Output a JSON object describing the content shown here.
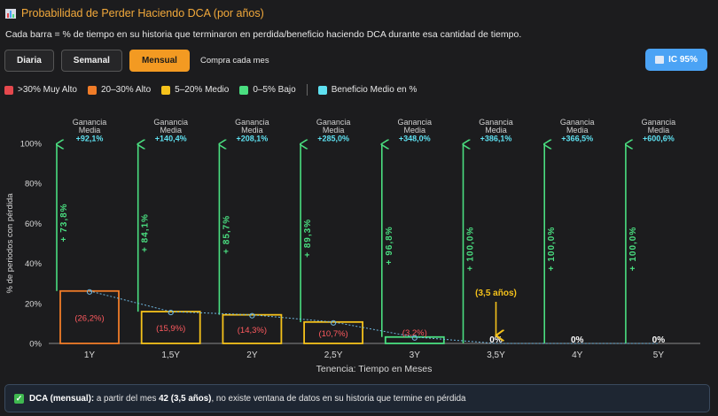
{
  "header": {
    "title": "Probabilidad de Perder Haciendo DCA (por años)",
    "description": "Cada barra = % de tiempo en su historia que terminaron en perdida/beneficio haciendo DCA durante esa cantidad de tiempo."
  },
  "controls": {
    "buttons": [
      {
        "label": "Diaria",
        "active": false
      },
      {
        "label": "Semanal",
        "active": false
      },
      {
        "label": "Mensual",
        "active": true
      }
    ],
    "frequency_label": "Compra cada mes",
    "ic_button": "IC 95%"
  },
  "legend": {
    "items": [
      {
        "label": ">30% Muy Alto",
        "color": "#e5484d"
      },
      {
        "label": "20–30% Alto",
        "color": "#f07c28"
      },
      {
        "label": "5–20% Medio",
        "color": "#f5c21b"
      },
      {
        "label": "0–5% Bajo",
        "color": "#4ade80"
      }
    ],
    "benefit": {
      "label": "Beneficio Medio en %",
      "color": "#5ee0f0"
    }
  },
  "chart_data": {
    "type": "bar",
    "categories": [
      "1Y",
      "1,5Y",
      "2Y",
      "2,5Y",
      "3Y",
      "3,5Y",
      "4Y",
      "5Y"
    ],
    "loss_values": [
      26.2,
      15.9,
      14.3,
      10.7,
      3.2,
      0,
      0,
      0
    ],
    "loss_labels": [
      "(26,2%)",
      "(15,9%)",
      "(14,3%)",
      "(10,7%)",
      "(3,2%)",
      "0%",
      "0%",
      "0%"
    ],
    "benefit_values": [
      73.8,
      84.1,
      85.7,
      89.3,
      96.8,
      100.0,
      100.0,
      100.0
    ],
    "benefit_labels": [
      "+ 73,8%",
      "+ 84,1%",
      "+ 85,7%",
      "+ 89,3%",
      "+ 96,8%",
      "+ 100,0%",
      "+ 100,0%",
      "+ 100,0%"
    ],
    "gain_header": "Ganancia Media",
    "gain_values": [
      "+92,1%",
      "+140,4%",
      "+208,1%",
      "+285,0%",
      "+348,0%",
      "+386,1%",
      "+366,5%",
      "+600,6%"
    ],
    "bar_colors": [
      "#f07c28",
      "#f5c21b",
      "#f5c21b",
      "#f5c21b",
      "#4ade80",
      "#4ade80",
      "#4ade80",
      "#4ade80"
    ],
    "ylim": [
      0,
      100
    ],
    "yticks": [
      0,
      20,
      40,
      60,
      80,
      100
    ],
    "ytick_labels": [
      "0%",
      "20%",
      "40%",
      "60%",
      "80%",
      "100%"
    ],
    "ylabel": "% de periodos con pérdida",
    "xlabel": "Tenencia: Tiempo en Meses",
    "annotation": {
      "label": "(3,5 años)",
      "category": "3,5Y"
    },
    "grid": false
  },
  "footer": {
    "prefix": "DCA (mensual):",
    "text1": " a partir del mes ",
    "bold": "42 (3,5 años)",
    "text2": ", no existe ventana de datos en su historia que termine en pérdida"
  }
}
